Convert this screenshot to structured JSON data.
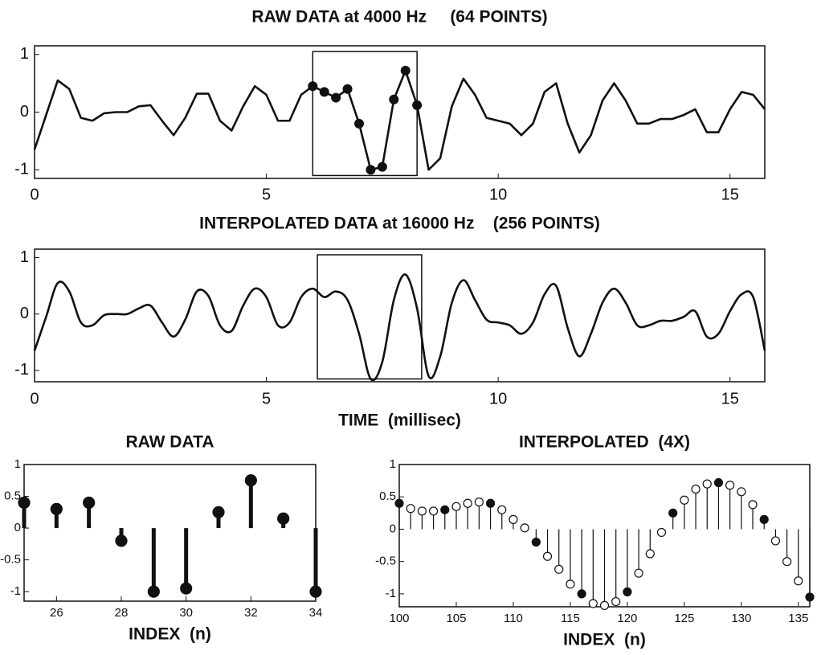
{
  "chart_data": [
    {
      "type": "line",
      "title": "RAW DATA at 4000 Hz     (64 POINTS)",
      "x": [
        0,
        0.25,
        0.5,
        0.75,
        1,
        1.25,
        1.5,
        1.75,
        2,
        2.25,
        2.5,
        2.75,
        3,
        3.25,
        3.5,
        3.75,
        4,
        4.25,
        4.5,
        4.75,
        5,
        5.25,
        5.5,
        5.75,
        6,
        6.25,
        6.5,
        6.75,
        7,
        7.25,
        7.5,
        7.75,
        8,
        8.25,
        8.5,
        8.75,
        9,
        9.25,
        9.5,
        9.75,
        10,
        10.25,
        10.5,
        10.75,
        11,
        11.25,
        11.5,
        11.75,
        12,
        12.25,
        12.5,
        12.75,
        13,
        13.25,
        13.5,
        13.75,
        14,
        14.25,
        14.5,
        14.75,
        15,
        15.25,
        15.5,
        15.75
      ],
      "values": [
        -0.65,
        -0.05,
        0.55,
        0.4,
        -0.1,
        -0.15,
        -0.02,
        0,
        0,
        0.1,
        0.12,
        -0.15,
        -0.4,
        -0.1,
        0.32,
        0.32,
        -0.15,
        -0.32,
        0.1,
        0.45,
        0.3,
        -0.15,
        -0.15,
        0.3,
        0.45,
        0.35,
        0.25,
        0.4,
        -0.2,
        -1,
        -0.95,
        0.22,
        0.72,
        0.12,
        -1,
        -0.8,
        0.1,
        0.58,
        0.3,
        -0.1,
        -0.15,
        -0.2,
        -0.4,
        -0.2,
        0.35,
        0.5,
        -0.2,
        -0.7,
        -0.4,
        0.2,
        0.5,
        0.2,
        -0.2,
        -0.2,
        -0.12,
        -0.12,
        -0.05,
        0.05,
        -0.35,
        -0.35,
        0.05,
        0.35,
        0.3,
        0.05
      ],
      "color": "#111",
      "smooth": false,
      "dots_in_box": true,
      "box": {
        "xlim": [
          6,
          8.25
        ],
        "ylim": [
          -1.1,
          1.05
        ]
      },
      "xlim": [
        0,
        15.75
      ],
      "ylim": [
        -1.15,
        1.15
      ],
      "xticks": [
        0,
        5,
        10,
        15
      ],
      "yticks": [
        -1,
        0,
        1
      ]
    },
    {
      "type": "line",
      "title": "INTERPOLATED DATA at 16000 Hz    (256 POINTS)",
      "xlabel": "TIME  (millisec)",
      "x": [
        0,
        0.25,
        0.5,
        0.75,
        1,
        1.25,
        1.5,
        1.75,
        2,
        2.25,
        2.5,
        2.75,
        3,
        3.25,
        3.5,
        3.75,
        4,
        4.25,
        4.5,
        4.75,
        5,
        5.25,
        5.5,
        5.75,
        6,
        6.25,
        6.5,
        6.75,
        7,
        7.25,
        7.5,
        7.75,
        8,
        8.25,
        8.5,
        8.75,
        9,
        9.25,
        9.5,
        9.75,
        10,
        10.25,
        10.5,
        10.75,
        11,
        11.25,
        11.5,
        11.75,
        12,
        12.25,
        12.5,
        12.75,
        13,
        13.25,
        13.5,
        13.75,
        14,
        14.25,
        14.5,
        14.75,
        15,
        15.25,
        15.5,
        15.75
      ],
      "values": [
        -0.65,
        -0.05,
        0.55,
        0.4,
        -0.15,
        -0.2,
        -0.02,
        0,
        0,
        0.1,
        0.15,
        -0.15,
        -0.4,
        -0.1,
        0.4,
        0.32,
        -0.2,
        -0.3,
        0.15,
        0.45,
        0.3,
        -0.2,
        -0.15,
        0.3,
        0.45,
        0.3,
        0.4,
        0.25,
        -0.35,
        -1.15,
        -0.85,
        0.25,
        0.7,
        0.1,
        -1.1,
        -0.75,
        0.2,
        0.6,
        0.25,
        -0.1,
        -0.15,
        -0.2,
        -0.35,
        -0.15,
        0.35,
        0.5,
        -0.25,
        -0.75,
        -0.35,
        0.2,
        0.45,
        0.2,
        -0.2,
        -0.2,
        -0.12,
        -0.12,
        -0.05,
        0.05,
        -0.4,
        -0.35,
        0.05,
        0.35,
        0.3,
        -0.65
      ],
      "color": "#111",
      "smooth": true,
      "dots_in_box": false,
      "box": {
        "xlim": [
          6.1,
          8.35
        ],
        "ylim": [
          -1.15,
          1.05
        ]
      },
      "xlim": [
        0,
        15.75
      ],
      "ylim": [
        -1.2,
        1.15
      ],
      "xticks": [
        0,
        5,
        10,
        15
      ],
      "yticks": [
        -1,
        0,
        1
      ]
    },
    {
      "type": "stem",
      "title": "RAW DATA",
      "xlabel": "INDEX  (n)",
      "series": [
        {
          "x": [
            25,
            26,
            27,
            28,
            29,
            30,
            31,
            32,
            33,
            34
          ],
          "values": [
            0.4,
            0.3,
            0.4,
            -0.2,
            -1,
            -0.95,
            0.25,
            0.75,
            0.15,
            -1
          ],
          "color": "#111",
          "marker": "filled"
        }
      ],
      "xlim": [
        25,
        34
      ],
      "ylim": [
        -1.15,
        1
      ],
      "xticks": [
        26,
        28,
        30,
        32,
        34
      ],
      "yticks": [
        -1,
        -0.5,
        0,
        0.5,
        1
      ]
    },
    {
      "type": "stem",
      "title": "INTERPOLATED  (4X)",
      "xlabel": "INDEX  (n)",
      "series": [
        {
          "x": [
            100,
            104,
            108,
            112,
            116,
            120,
            124,
            128,
            132,
            136
          ],
          "values": [
            0.4,
            0.3,
            0.4,
            -0.2,
            -1,
            -0.97,
            0.25,
            0.72,
            0.15,
            -1.05
          ],
          "color": "#111",
          "marker": "filled"
        },
        {
          "x": [
            101,
            102,
            103,
            105,
            106,
            107,
            109,
            110,
            111,
            113,
            114,
            115,
            117,
            118,
            119,
            121,
            122,
            123,
            125,
            126,
            127,
            129,
            130,
            131,
            133,
            134,
            135
          ],
          "values": [
            0.32,
            0.28,
            0.28,
            0.35,
            0.4,
            0.42,
            0.3,
            0.15,
            0.02,
            -0.42,
            -0.62,
            -0.85,
            -1.15,
            -1.18,
            -1.12,
            -0.68,
            -0.38,
            -0.05,
            0.45,
            0.62,
            0.7,
            0.68,
            0.58,
            0.38,
            -0.18,
            -0.5,
            -0.8
          ],
          "color": "#111",
          "marker": "open"
        }
      ],
      "xlim": [
        100,
        136
      ],
      "ylim": [
        -1.2,
        1
      ],
      "xticks": [
        100,
        105,
        110,
        115,
        120,
        125,
        130,
        135
      ],
      "yticks": [
        -1,
        -0.5,
        0,
        0.5,
        1
      ]
    }
  ]
}
